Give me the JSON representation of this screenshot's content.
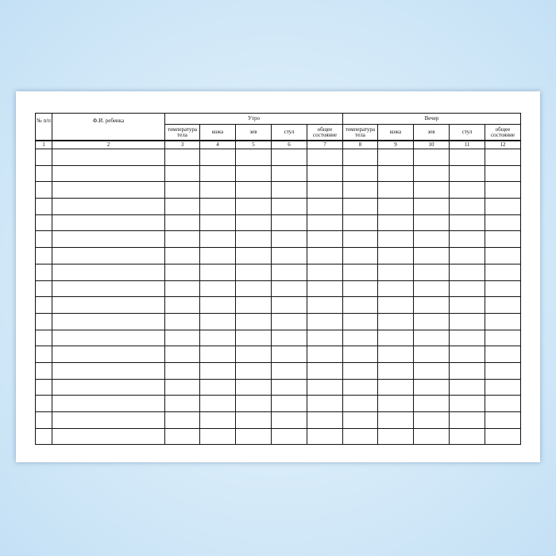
{
  "table": {
    "col_no": "№ п/п",
    "col_name": "Ф.И. ребенка",
    "group_morning": "Утро",
    "group_evening": "Вечер",
    "subcolumns": [
      "температура тела",
      "кожа",
      "зев",
      "стул",
      "общее состояние"
    ],
    "column_numbers": [
      "1",
      "2",
      "3",
      "4",
      "5",
      "6",
      "7",
      "8",
      "9",
      "10",
      "11",
      "12"
    ],
    "empty_rows": 18
  }
}
